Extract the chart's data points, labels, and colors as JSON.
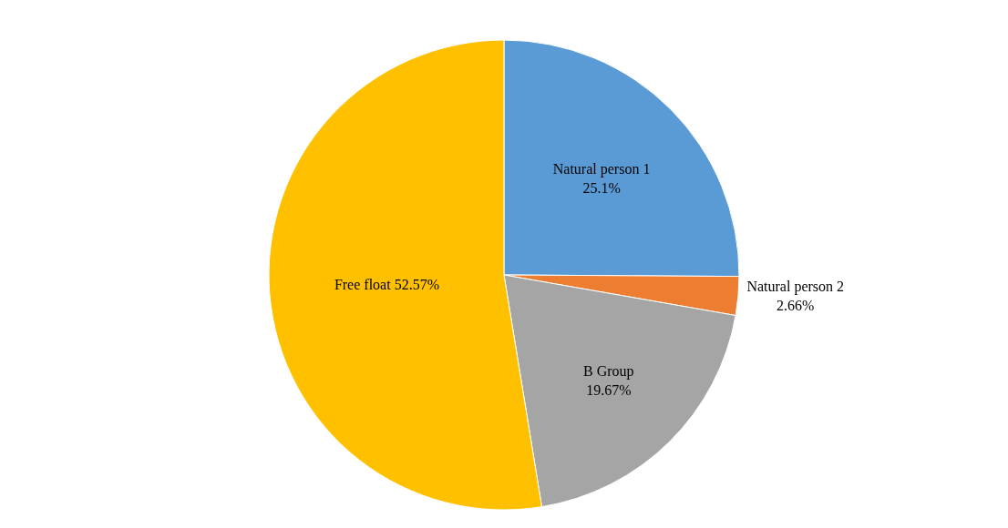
{
  "chart_data": {
    "type": "pie",
    "categories": [
      "Natural person 1",
      "Natural person 2",
      "B Group",
      "Free float"
    ],
    "values": [
      25.1,
      2.66,
      19.67,
      52.57
    ],
    "colors": [
      "#5b9bd5",
      "#ed7d31",
      "#a5a5a5",
      "#ffc000"
    ],
    "value_labels": [
      "25.1%",
      "2.66%",
      "19.67%",
      "52.57%"
    ],
    "legend": false
  }
}
